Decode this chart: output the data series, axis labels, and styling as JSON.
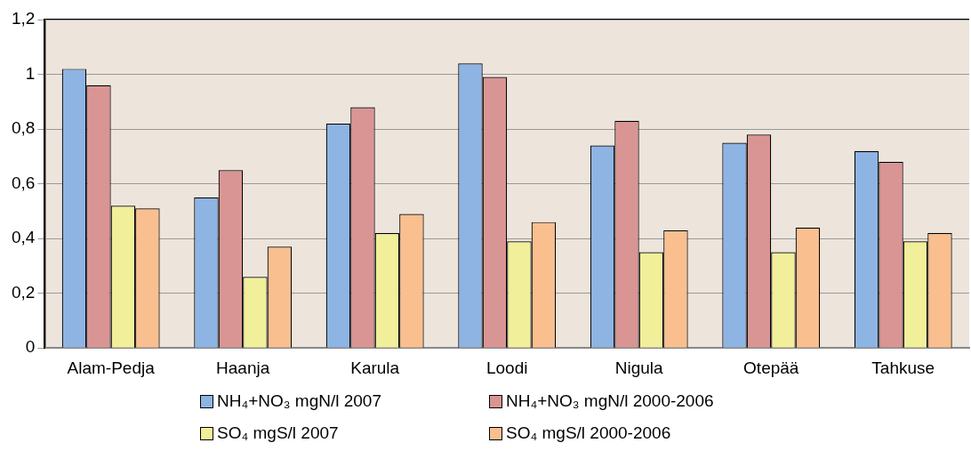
{
  "chart_data": {
    "type": "bar",
    "categories": [
      "Alam-Pedja",
      "Haanja",
      "Karula",
      "Loodi",
      "Nigula",
      "Otepää",
      "Tahkuse"
    ],
    "series": [
      {
        "name": "NH₄+NO₃ mgN/l 2007",
        "color": "#8eb4e3",
        "values": [
          1.02,
          0.55,
          0.82,
          1.04,
          0.74,
          0.75,
          0.72
        ]
      },
      {
        "name": "NH₄+NO₃ mgN/l 2000-2006",
        "color": "#d99594",
        "values": [
          0.96,
          0.65,
          0.88,
          0.99,
          0.83,
          0.78,
          0.68
        ]
      },
      {
        "name": "SO₄ mgS/l 2007",
        "color": "#f2ef9b",
        "values": [
          0.52,
          0.26,
          0.42,
          0.39,
          0.35,
          0.35,
          0.39
        ]
      },
      {
        "name": "SO₄ mgS/l 2000-2006",
        "color": "#f9bf8f",
        "values": [
          0.51,
          0.37,
          0.49,
          0.46,
          0.43,
          0.44,
          0.42
        ]
      }
    ],
    "ylim": [
      0,
      1.2
    ],
    "yticks": [
      0,
      {
        "value": 0.2,
        "label": "0,2"
      },
      {
        "value": 0.4,
        "label": "0,4"
      },
      {
        "value": 0.6,
        "label": "0,6"
      },
      {
        "value": 0.8,
        "label": "0,8"
      },
      1,
      {
        "value": 1.2,
        "label": "1,2"
      }
    ],
    "grid": "y",
    "legend": "bottom"
  }
}
